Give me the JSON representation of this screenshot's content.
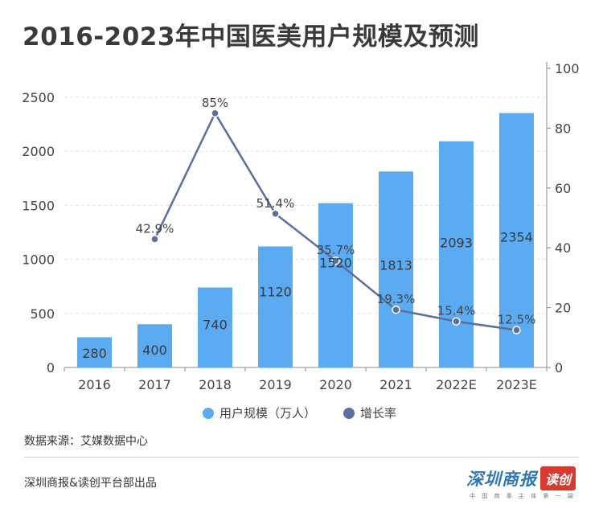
{
  "title": "2016-2023年中国医美用户规模及预测",
  "chart_data": {
    "type": "bar",
    "categories": [
      "2016",
      "2017",
      "2018",
      "2019",
      "2020",
      "2021",
      "2022E",
      "2023E"
    ],
    "series": [
      {
        "name": "用户规模（万人）",
        "type": "bar",
        "axis": "left",
        "color": "#5aabf2",
        "values": [
          280,
          400,
          740,
          1120,
          1520,
          1813,
          2093,
          2354
        ],
        "labels": [
          "280",
          "400",
          "740",
          "1120",
          "1520",
          "1813",
          "2093",
          "2354"
        ]
      },
      {
        "name": "增长率",
        "type": "line",
        "axis": "right",
        "color": "#5a6f9e",
        "values": [
          null,
          42.9,
          85,
          51.4,
          35.7,
          19.3,
          15.4,
          12.5
        ],
        "labels": [
          "",
          "42.9%",
          "85%",
          "51.4%",
          "35.7%",
          "19.3%",
          "15.4%",
          "12.5%"
        ]
      }
    ],
    "y_left": {
      "min": 0,
      "max": 2500,
      "ticks": [
        "0",
        "500",
        "1000",
        "1500",
        "2000",
        "2500"
      ]
    },
    "y_right": {
      "min": 0,
      "max": 100,
      "ticks": [
        "0",
        "20",
        "40",
        "60",
        "80",
        "100"
      ]
    },
    "grid": true,
    "legend": "bottom"
  },
  "source": "数据来源：艾媒数据中心",
  "publisher": "深圳商报&读创平台部出品",
  "logo": {
    "main_left": "深圳商报",
    "main_right": "读创",
    "sub": "中 国 商 事 主 体 第 一 端"
  }
}
